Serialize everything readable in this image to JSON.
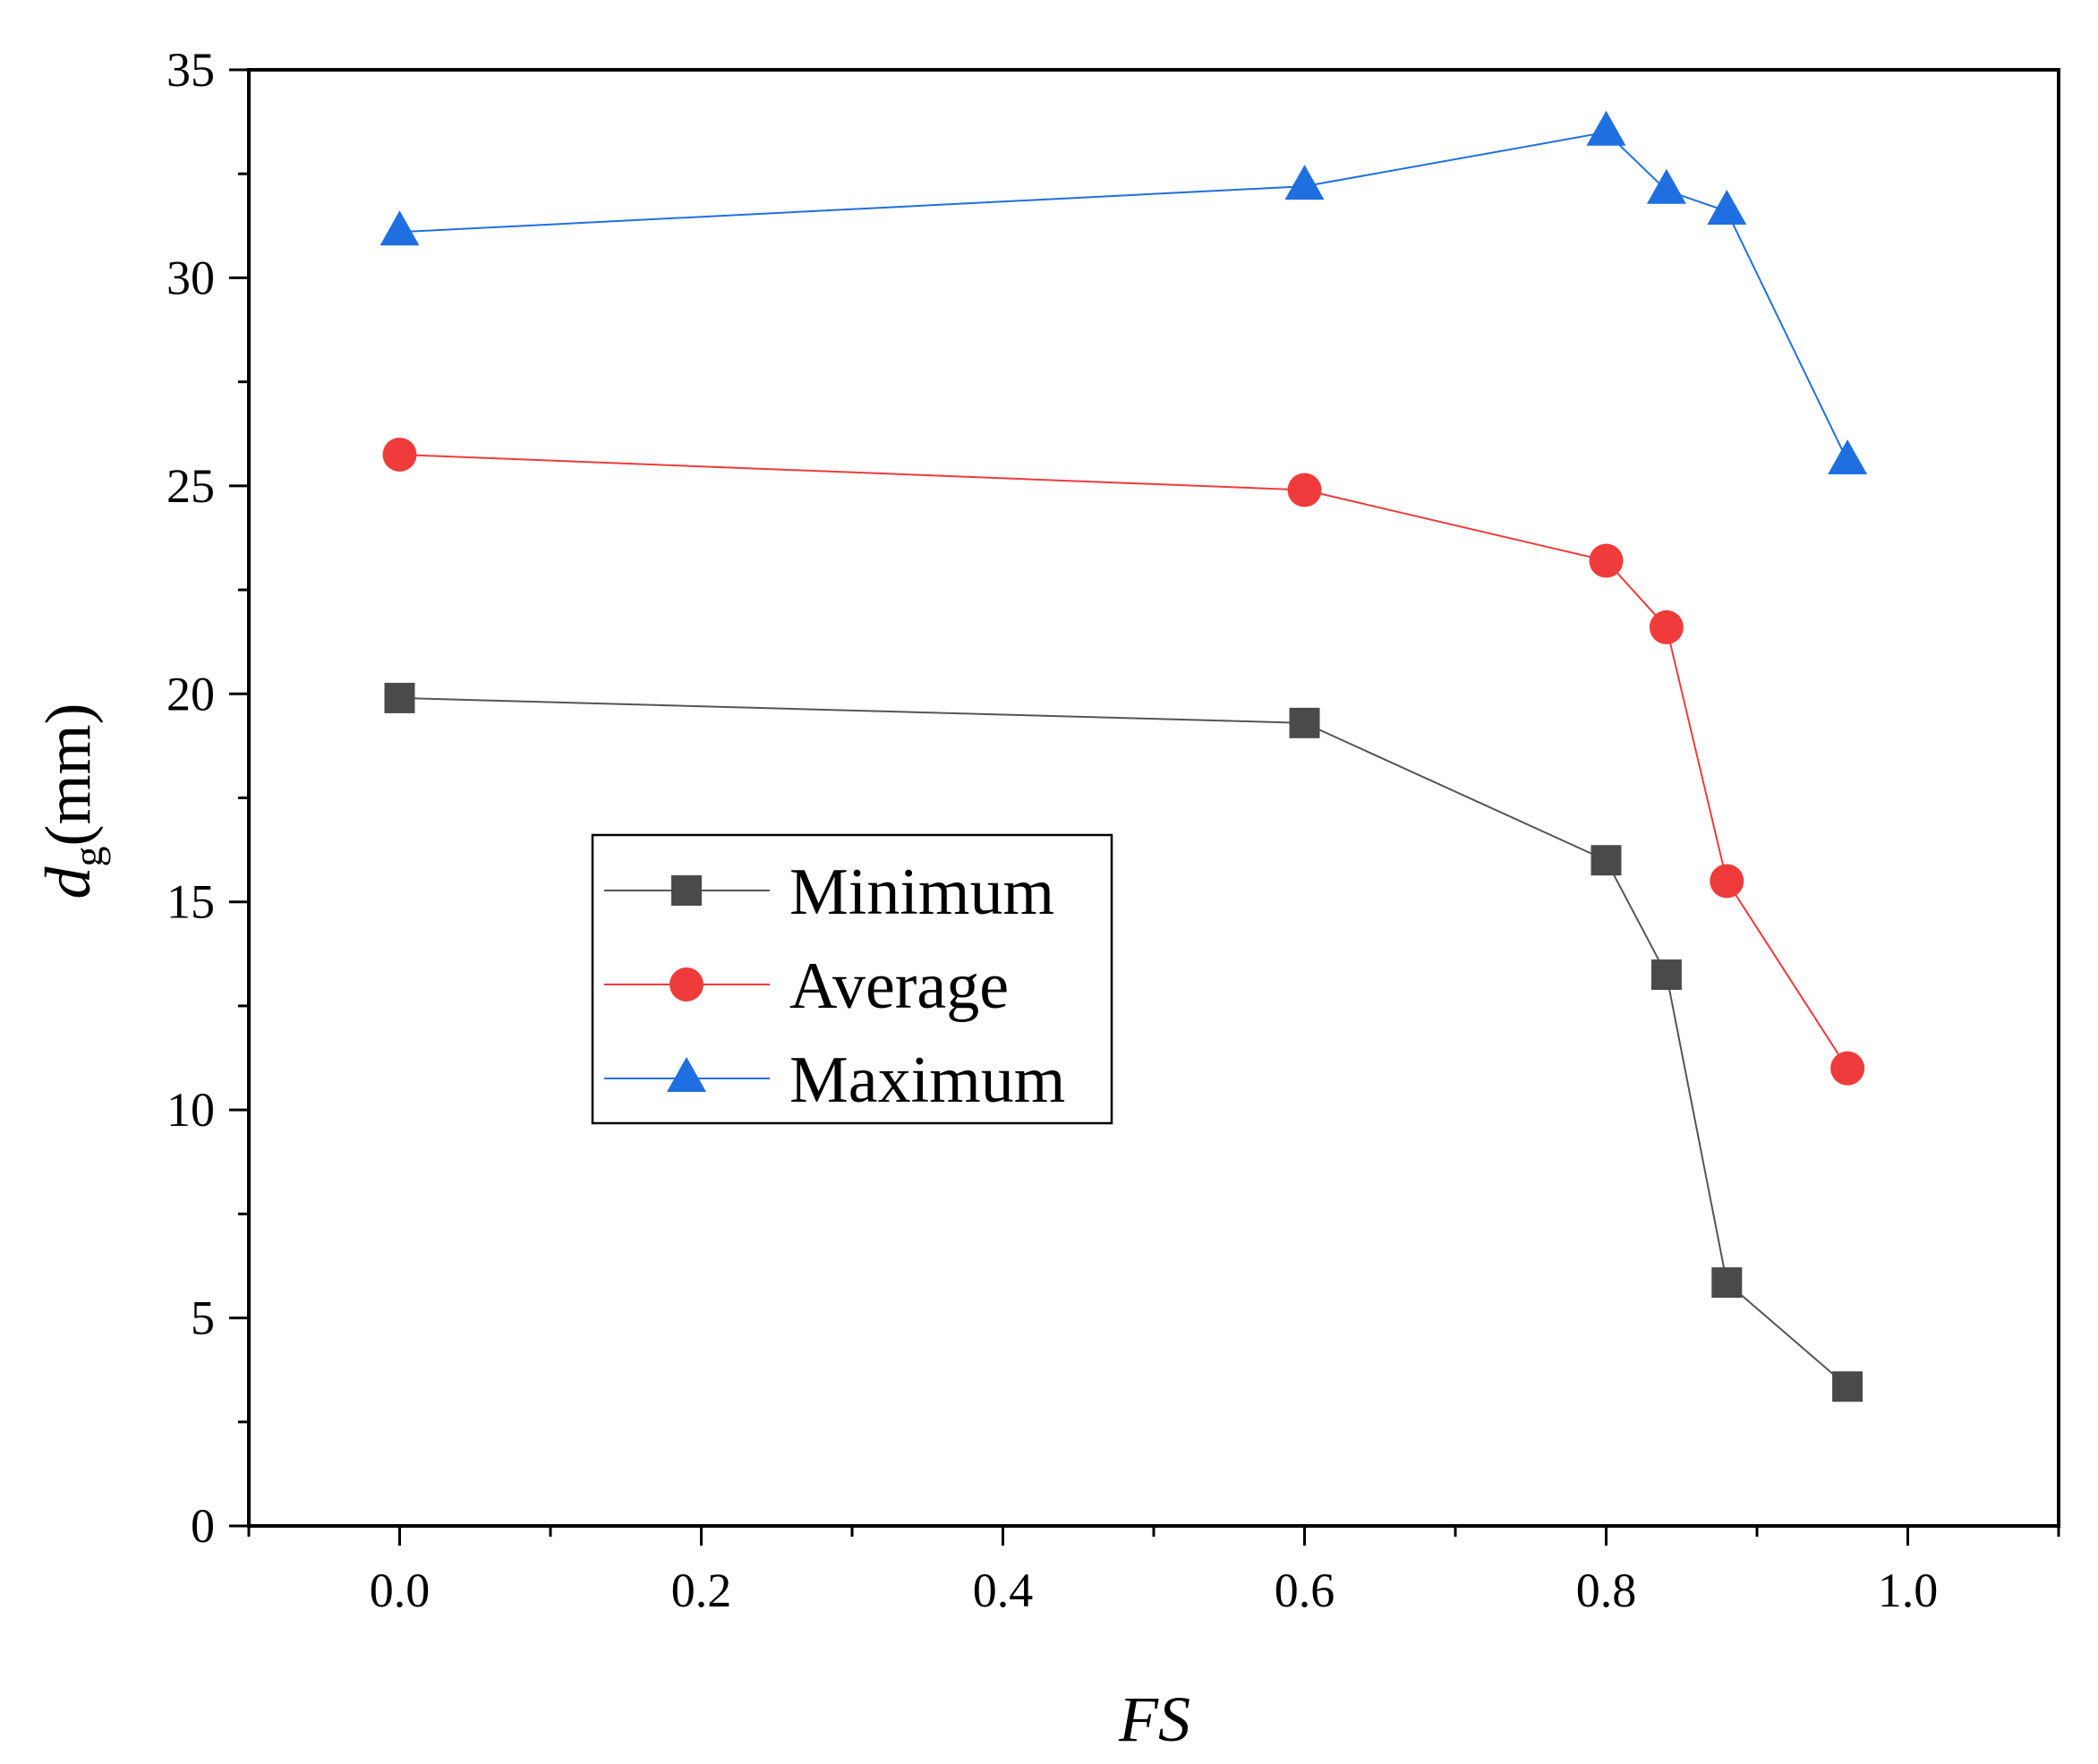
{
  "chart_data": {
    "type": "line",
    "title": "",
    "xlabel": "FS",
    "ylabel": {
      "main": "d",
      "subscript": "g",
      "unit": "(mm)"
    },
    "xlim": [
      -0.1,
      1.1
    ],
    "ylim": [
      0,
      35
    ],
    "x_ticks": [
      0.0,
      0.2,
      0.4,
      0.6,
      0.8,
      1.0
    ],
    "x_tick_labels": [
      "0.0",
      "0.2",
      "0.4",
      "0.6",
      "0.8",
      "1.0"
    ],
    "y_ticks": [
      0,
      5,
      10,
      15,
      20,
      25,
      30,
      35
    ],
    "y_tick_labels": [
      "0",
      "5",
      "10",
      "15",
      "20",
      "25",
      "30",
      "35"
    ],
    "x_minor_step": 0.1,
    "y_minor_step": 2.5,
    "grid": false,
    "legend_position": "middle-left",
    "x": [
      0.0,
      0.6,
      0.8,
      0.84,
      0.88,
      0.96
    ],
    "series": [
      {
        "name": "Minimum",
        "marker": "square",
        "color": "#4a4a4a",
        "line_color": "#555555",
        "values": [
          19.9,
          19.3,
          16.0,
          13.25,
          5.85,
          3.35
        ]
      },
      {
        "name": "Average",
        "marker": "circle",
        "color": "#ef3b3b",
        "line_color": "#ef3b3b",
        "values": [
          25.75,
          24.9,
          23.2,
          21.6,
          15.5,
          11.0
        ]
      },
      {
        "name": "Maximum",
        "marker": "triangle",
        "color": "#1f6fe0",
        "line_color": "#1f6fe0",
        "values": [
          31.1,
          32.2,
          33.5,
          32.1,
          31.6,
          25.6
        ]
      }
    ]
  }
}
